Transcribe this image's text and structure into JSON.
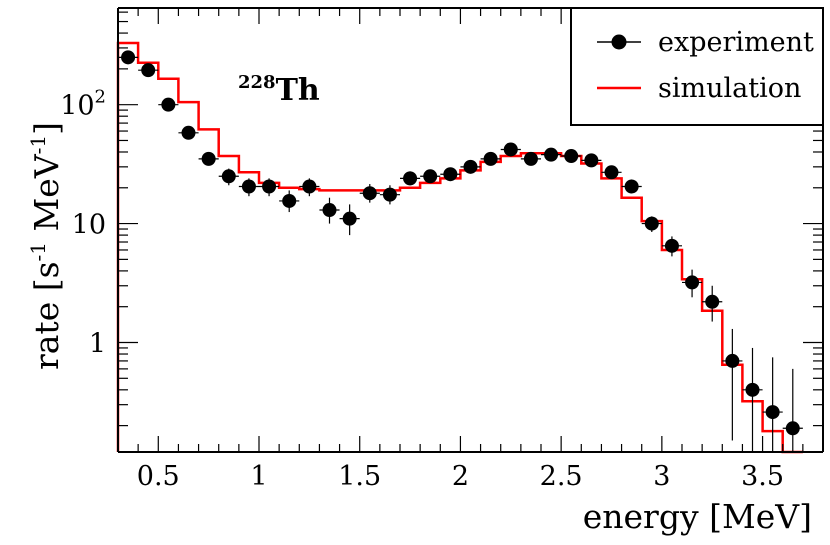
{
  "chart_data": {
    "type": "scatter",
    "title": "",
    "annotation": {
      "superscript": "228",
      "element": "Th"
    },
    "xlabel": "energy [MeV]",
    "ylabel": {
      "main": "rate [s",
      "exp1": "-1",
      "mid": " MeV",
      "exp2": "-1",
      "end": "]"
    },
    "xlim": [
      0.3,
      3.8
    ],
    "ylim": [
      0.12,
      650
    ],
    "yscale": "log",
    "legend_position": "top-right",
    "x_ticks": [
      {
        "value": 0.5,
        "label": "0.5"
      },
      {
        "value": 1.0,
        "label": "1"
      },
      {
        "value": 1.5,
        "label": "1.5"
      },
      {
        "value": 2.0,
        "label": "2"
      },
      {
        "value": 2.5,
        "label": "2.5"
      },
      {
        "value": 3.0,
        "label": "3"
      },
      {
        "value": 3.5,
        "label": "3.5"
      }
    ],
    "y_ticks": [
      {
        "value": 1,
        "label": "1"
      },
      {
        "value": 10,
        "label": "10"
      },
      {
        "value": 100,
        "label": "10",
        "exp": "2"
      }
    ],
    "series": [
      {
        "name": "experiment",
        "kind": "points",
        "color": "#000000",
        "bin_halfwidth": 0.05,
        "points": [
          {
            "x": 0.35,
            "y": 250,
            "ylo": 235,
            "yhi": 265
          },
          {
            "x": 0.45,
            "y": 195,
            "ylo": 183,
            "yhi": 207
          },
          {
            "x": 0.55,
            "y": 100,
            "ylo": 92,
            "yhi": 108
          },
          {
            "x": 0.65,
            "y": 58,
            "ylo": 52,
            "yhi": 64
          },
          {
            "x": 0.75,
            "y": 35,
            "ylo": 31,
            "yhi": 39
          },
          {
            "x": 0.85,
            "y": 25,
            "ylo": 21,
            "yhi": 29
          },
          {
            "x": 0.95,
            "y": 20.5,
            "ylo": 17,
            "yhi": 24
          },
          {
            "x": 1.05,
            "y": 20.5,
            "ylo": 17,
            "yhi": 24
          },
          {
            "x": 1.15,
            "y": 15.5,
            "ylo": 12.5,
            "yhi": 19
          },
          {
            "x": 1.25,
            "y": 20.5,
            "ylo": 17,
            "yhi": 24
          },
          {
            "x": 1.35,
            "y": 13,
            "ylo": 10,
            "yhi": 16.5
          },
          {
            "x": 1.45,
            "y": 11,
            "ylo": 8,
            "yhi": 14.5
          },
          {
            "x": 1.55,
            "y": 18,
            "ylo": 15,
            "yhi": 21.5
          },
          {
            "x": 1.65,
            "y": 17.5,
            "ylo": 14.5,
            "yhi": 21
          },
          {
            "x": 1.75,
            "y": 24,
            "ylo": 21,
            "yhi": 27.5
          },
          {
            "x": 1.85,
            "y": 25,
            "ylo": 22,
            "yhi": 28.5
          },
          {
            "x": 1.95,
            "y": 26,
            "ylo": 23,
            "yhi": 29.5
          },
          {
            "x": 2.05,
            "y": 30,
            "ylo": 27,
            "yhi": 33.5
          },
          {
            "x": 2.15,
            "y": 35,
            "ylo": 32,
            "yhi": 38.5
          },
          {
            "x": 2.25,
            "y": 42,
            "ylo": 38,
            "yhi": 46
          },
          {
            "x": 2.35,
            "y": 35,
            "ylo": 32,
            "yhi": 38.5
          },
          {
            "x": 2.45,
            "y": 38,
            "ylo": 34.5,
            "yhi": 41.5
          },
          {
            "x": 2.55,
            "y": 37,
            "ylo": 33.5,
            "yhi": 40.5
          },
          {
            "x": 2.65,
            "y": 34,
            "ylo": 31,
            "yhi": 37.5
          },
          {
            "x": 2.75,
            "y": 27,
            "ylo": 24,
            "yhi": 30
          },
          {
            "x": 2.85,
            "y": 20.5,
            "ylo": 18,
            "yhi": 23.5
          },
          {
            "x": 2.95,
            "y": 10,
            "ylo": 8.5,
            "yhi": 11.5
          },
          {
            "x": 3.05,
            "y": 6.5,
            "ylo": 5.3,
            "yhi": 7.8
          },
          {
            "x": 3.15,
            "y": 3.2,
            "ylo": 2.4,
            "yhi": 4.1
          },
          {
            "x": 3.25,
            "y": 2.2,
            "ylo": 1.5,
            "yhi": 3.0
          },
          {
            "x": 3.35,
            "y": 0.7,
            "ylo": 0.15,
            "yhi": 1.3
          },
          {
            "x": 3.45,
            "y": 0.4,
            "ylo": 0.12,
            "yhi": 0.9
          },
          {
            "x": 3.55,
            "y": 0.26,
            "ylo": 0.12,
            "yhi": 0.75
          },
          {
            "x": 3.65,
            "y": 0.19,
            "ylo": 0.12,
            "yhi": 0.6
          }
        ]
      },
      {
        "name": "simulation",
        "kind": "histogram",
        "color": "#ff0000",
        "bins": [
          {
            "lo": 0.3,
            "hi": 0.4,
            "y": 330
          },
          {
            "lo": 0.4,
            "hi": 0.5,
            "y": 225
          },
          {
            "lo": 0.5,
            "hi": 0.6,
            "y": 165
          },
          {
            "lo": 0.6,
            "hi": 0.7,
            "y": 105
          },
          {
            "lo": 0.7,
            "hi": 0.8,
            "y": 62
          },
          {
            "lo": 0.8,
            "hi": 0.9,
            "y": 37
          },
          {
            "lo": 0.9,
            "hi": 1.0,
            "y": 27
          },
          {
            "lo": 1.0,
            "hi": 1.1,
            "y": 22
          },
          {
            "lo": 1.1,
            "hi": 1.2,
            "y": 20
          },
          {
            "lo": 1.2,
            "hi": 1.3,
            "y": 19.5
          },
          {
            "lo": 1.3,
            "hi": 1.4,
            "y": 19
          },
          {
            "lo": 1.4,
            "hi": 1.5,
            "y": 19
          },
          {
            "lo": 1.5,
            "hi": 1.6,
            "y": 19
          },
          {
            "lo": 1.6,
            "hi": 1.7,
            "y": 19
          },
          {
            "lo": 1.7,
            "hi": 1.8,
            "y": 20
          },
          {
            "lo": 1.8,
            "hi": 1.9,
            "y": 22
          },
          {
            "lo": 1.9,
            "hi": 2.0,
            "y": 24
          },
          {
            "lo": 2.0,
            "hi": 2.1,
            "y": 28
          },
          {
            "lo": 2.1,
            "hi": 2.2,
            "y": 33
          },
          {
            "lo": 2.2,
            "hi": 2.3,
            "y": 37
          },
          {
            "lo": 2.3,
            "hi": 2.4,
            "y": 39
          },
          {
            "lo": 2.4,
            "hi": 2.5,
            "y": 39
          },
          {
            "lo": 2.5,
            "hi": 2.6,
            "y": 37
          },
          {
            "lo": 2.6,
            "hi": 2.7,
            "y": 32
          },
          {
            "lo": 2.7,
            "hi": 2.8,
            "y": 24
          },
          {
            "lo": 2.8,
            "hi": 2.9,
            "y": 16.5
          },
          {
            "lo": 2.9,
            "hi": 3.0,
            "y": 10.5
          },
          {
            "lo": 3.0,
            "hi": 3.1,
            "y": 6
          },
          {
            "lo": 3.1,
            "hi": 3.2,
            "y": 3.4
          },
          {
            "lo": 3.2,
            "hi": 3.3,
            "y": 1.85
          },
          {
            "lo": 3.3,
            "hi": 3.4,
            "y": 0.65
          },
          {
            "lo": 3.4,
            "hi": 3.5,
            "y": 0.32
          },
          {
            "lo": 3.5,
            "hi": 3.6,
            "y": 0.18
          },
          {
            "lo": 3.6,
            "hi": 3.7,
            "y": 0.12
          }
        ]
      }
    ]
  }
}
